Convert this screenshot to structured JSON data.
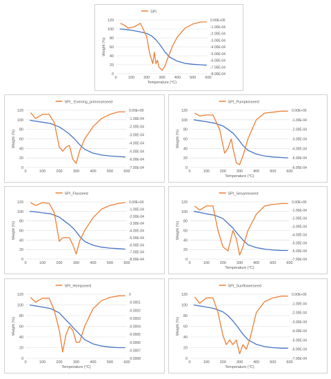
{
  "colors": {
    "weight_line": "#4472c4",
    "deriv_line": "#ed7d31",
    "grid": "#d9d9d9",
    "axis_text": "#595959"
  },
  "chart_data": [
    {
      "type": "line",
      "title": "",
      "legend": "SPI",
      "legend_position": "top",
      "xlabel": "Temperature (°C)",
      "ylabel": "Weight (%)",
      "xlim": [
        0,
        600
      ],
      "ylim": [
        0,
        120
      ],
      "y_ticks": [
        0,
        20,
        40,
        60,
        80,
        100,
        120
      ],
      "x_ticks": [
        0,
        100,
        200,
        300,
        400,
        500,
        600
      ],
      "y2_ticks": [
        "0.00E+00",
        "-1.00E-04",
        "-2.00E-04",
        "-3.00E-04",
        "-4.00E-04",
        "-5.00E-04",
        "-6.00E-04",
        "-7.00E-04",
        "-8.00E-04"
      ],
      "y2lim": [
        -0.0008,
        0
      ],
      "grid": true,
      "weight": {
        "x": [
          25,
          60,
          100,
          150,
          200,
          230,
          260,
          290,
          320,
          350,
          400,
          450,
          500,
          550,
          590
        ],
        "y": [
          100,
          99,
          97,
          94,
          90,
          85,
          76,
          63,
          48,
          37,
          28,
          23,
          21,
          20,
          19
        ]
      },
      "dwdt": {
        "name": "SPI",
        "x": [
          30,
          50,
          80,
          120,
          160,
          200,
          220,
          240,
          250,
          260,
          270,
          280,
          300,
          320,
          340,
          370,
          400,
          450,
          500,
          550,
          590
        ],
        "y": [
          -5e-05,
          -7e-05,
          -0.00012,
          -0.0001,
          -5e-05,
          -0.00025,
          -0.0005,
          -0.00065,
          -0.00048,
          -0.00065,
          -0.0006,
          -0.0007,
          -0.00075,
          -0.00068,
          -0.00055,
          -0.00038,
          -0.00025,
          -0.00012,
          -6e-05,
          -3e-05,
          -3e-05
        ]
      }
    },
    {
      "type": "line",
      "title": "",
      "legend": "SPI_ Evening_primroseseed",
      "legend_position": "top",
      "xlabel": "",
      "ylabel": "Weight (%)",
      "xlim": [
        0,
        600
      ],
      "ylim": [
        0,
        120
      ],
      "y_ticks": [
        0,
        20,
        40,
        60,
        80,
        100,
        120
      ],
      "x_ticks": [
        0,
        100,
        200,
        300,
        400,
        500,
        600
      ],
      "y2_ticks": [
        "0.00E+00",
        "-1.00E-04",
        "-2.00E-04",
        "-3.00E-04",
        "-4.00E-04",
        "-5.00E-04",
        "-6.00E-04",
        "-7.00E-04"
      ],
      "y2lim": [
        -0.0007,
        0
      ],
      "grid": true,
      "weight": {
        "x": [
          25,
          60,
          100,
          150,
          200,
          230,
          260,
          290,
          320,
          350,
          400,
          450,
          500,
          550,
          590
        ],
        "y": [
          99,
          97,
          95,
          92,
          85,
          78,
          70,
          60,
          48,
          38,
          30,
          26,
          24,
          23,
          22
        ]
      },
      "dwdt": {
        "name": "SPI_ Evening_primroseseed",
        "x": [
          30,
          60,
          100,
          140,
          170,
          200,
          220,
          240,
          260,
          280,
          300,
          320,
          350,
          400,
          450,
          500,
          550,
          590
        ],
        "y": [
          -3e-05,
          -0.0001,
          -5e-05,
          -5e-05,
          -0.00015,
          -0.00045,
          -0.0005,
          -0.00045,
          -0.00043,
          -0.0006,
          -0.00065,
          -0.0005,
          -0.00035,
          -0.0002,
          -0.0001,
          -5e-05,
          -2e-05,
          -2e-05
        ]
      }
    },
    {
      "type": "line",
      "title": "",
      "legend": "SPI_Pumpkinseed",
      "legend_position": "top",
      "xlabel": "Temperature (°C)",
      "ylabel": "Weight (%)",
      "xlim": [
        0,
        600
      ],
      "ylim": [
        0,
        120
      ],
      "y_ticks": [
        0,
        20,
        40,
        60,
        80,
        100,
        120
      ],
      "x_ticks": [
        0,
        100,
        200,
        300,
        400,
        500,
        600
      ],
      "y2_ticks": [
        "0.00E+00",
        "-1.00E-04",
        "-2.00E-04",
        "-3.00E-04",
        "-4.00E-04",
        "-5.00E-04",
        "-6.00E-04"
      ],
      "y2lim": [
        -0.0006,
        0
      ],
      "grid": true,
      "weight": {
        "x": [
          25,
          60,
          100,
          150,
          200,
          230,
          260,
          290,
          320,
          350,
          400,
          450,
          500,
          550,
          590
        ],
        "y": [
          100,
          98,
          96,
          93,
          87,
          80,
          72,
          60,
          46,
          36,
          28,
          24,
          22,
          21,
          20
        ]
      },
      "dwdt": {
        "name": "SPI_Pumpkinseed",
        "x": [
          30,
          60,
          100,
          140,
          180,
          210,
          230,
          250,
          260,
          280,
          300,
          320,
          350,
          400,
          450,
          500,
          550,
          590
        ],
        "y": [
          -3e-05,
          -6e-05,
          -5e-05,
          -5e-05,
          -0.0002,
          -0.00045,
          -0.0004,
          -0.0003,
          -0.0004,
          -0.00055,
          -0.00057,
          -0.00048,
          -0.0003,
          -0.0001,
          -3e-05,
          -2e-05,
          -1e-05,
          -1e-05
        ]
      }
    },
    {
      "type": "line",
      "title": "",
      "legend": "SPI_Flaxseed",
      "legend_position": "top",
      "xlabel": "",
      "ylabel": "Weight (%)",
      "xlim": [
        0,
        600
      ],
      "ylim": [
        0,
        120
      ],
      "y_ticks": [
        0,
        20,
        40,
        60,
        80,
        100,
        120
      ],
      "x_ticks": [
        0,
        100,
        200,
        300,
        400,
        500,
        600
      ],
      "y2_ticks": [
        "0.00E+00",
        "-1.00E-04",
        "-2.00E-04",
        "-3.00E-04",
        "-4.00E-04",
        "-5.00E-04",
        "-6.00E-04",
        "-7.00E-04",
        "-8.00E-04"
      ],
      "y2lim": [
        -0.0008,
        0
      ],
      "grid": true,
      "weight": {
        "x": [
          25,
          60,
          100,
          150,
          200,
          230,
          260,
          290,
          320,
          350,
          400,
          450,
          500,
          550,
          590
        ],
        "y": [
          100,
          99,
          97,
          95,
          88,
          80,
          72,
          62,
          48,
          37,
          29,
          25,
          23,
          22,
          21
        ]
      },
      "dwdt": {
        "name": "SPI_Flaxseed",
        "x": [
          30,
          60,
          100,
          140,
          170,
          200,
          220,
          240,
          260,
          280,
          300,
          320,
          350,
          400,
          450,
          500,
          550,
          590
        ],
        "y": [
          -1e-05,
          -5e-05,
          -1e-05,
          -2e-05,
          -0.00015,
          -0.00055,
          -0.0005,
          -0.0005,
          -0.0005,
          -0.0006,
          -0.00073,
          -0.00055,
          -0.0004,
          -0.00022,
          -0.0001,
          -5e-05,
          -2e-05,
          -1e-05
        ]
      }
    },
    {
      "type": "line",
      "title": "",
      "legend": "SPI_Sesameseed",
      "legend_position": "top",
      "xlabel": "Temperature (°C)",
      "ylabel": "Weight (%)",
      "xlim": [
        0,
        600
      ],
      "ylim": [
        0,
        120
      ],
      "y_ticks": [
        0,
        20,
        40,
        60,
        80,
        100,
        120
      ],
      "x_ticks": [
        0,
        100,
        200,
        300,
        400,
        500,
        600
      ],
      "y2_ticks": [
        "0.00E+00",
        "-1.00E-04",
        "-2.00E-04",
        "-3.00E-04",
        "-4.00E-04",
        "-5.00E-04",
        "-6.00E-04",
        "-7.00E-04"
      ],
      "y2lim": [
        -0.0007,
        0
      ],
      "grid": true,
      "weight": {
        "x": [
          25,
          60,
          100,
          150,
          200,
          230,
          260,
          290,
          320,
          350,
          400,
          450,
          500,
          550,
          590
        ],
        "y": [
          100,
          98,
          95,
          92,
          85,
          75,
          65,
          52,
          40,
          30,
          24,
          21,
          19,
          18,
          18
        ]
      },
      "dwdt": {
        "name": "SPI_Sesameseed",
        "x": [
          30,
          60,
          100,
          140,
          170,
          200,
          230,
          260,
          280,
          300,
          320,
          350,
          400,
          450,
          500,
          550,
          590
        ],
        "y": [
          -5e-05,
          -0.0001,
          -5e-05,
          -5e-05,
          -0.00035,
          -0.00055,
          -0.0006,
          -0.00035,
          -0.00045,
          -0.00065,
          -0.00055,
          -0.00035,
          -0.00015,
          -5e-05,
          -3e-05,
          -2e-05,
          -2e-05
        ]
      }
    },
    {
      "type": "line",
      "title": "",
      "legend": "SPI_Hempseed",
      "legend_position": "top",
      "xlabel": "Temperature (°C)",
      "ylabel": "Weight (%)",
      "xlim": [
        0,
        600
      ],
      "ylim": [
        0,
        120
      ],
      "y_ticks": [
        0,
        20,
        40,
        60,
        80,
        100,
        120
      ],
      "x_ticks": [
        0,
        100,
        200,
        300,
        400,
        500,
        600
      ],
      "y2_ticks": [
        "0",
        "-0.0001",
        "-0.0002",
        "-0.0003",
        "-0.0004",
        "-0.0005",
        "-0.0006",
        "-0.0007",
        "-0.0008"
      ],
      "y2lim": [
        -0.0008,
        0
      ],
      "grid": true,
      "weight": {
        "x": [
          25,
          60,
          100,
          150,
          200,
          230,
          260,
          290,
          320,
          350,
          400,
          450,
          500,
          550,
          590
        ],
        "y": [
          100,
          98,
          96,
          93,
          85,
          75,
          65,
          55,
          45,
          35,
          27,
          23,
          21,
          20,
          20
        ]
      },
      "dwdt": {
        "name": "SPI_Hempseed",
        "x": [
          30,
          60,
          100,
          140,
          170,
          200,
          220,
          240,
          260,
          280,
          300,
          320,
          350,
          400,
          450,
          500,
          550,
          590
        ],
        "y": [
          -4e-05,
          -0.0001,
          -5e-05,
          -5e-05,
          -0.0002,
          -0.00045,
          -0.00072,
          -0.0005,
          -0.0004,
          -0.00045,
          -0.0006,
          -0.0006,
          -0.0004,
          -0.00018,
          -8e-05,
          -4e-05,
          -2e-05,
          -2e-05
        ]
      }
    },
    {
      "type": "line",
      "title": "",
      "legend": "SPI_Sunflowerseed",
      "legend_position": "top",
      "xlabel": "Temperature (°C)",
      "ylabel": "Weight (%)",
      "xlim": [
        0,
        600
      ],
      "ylim": [
        0,
        120
      ],
      "y_ticks": [
        0,
        20,
        40,
        60,
        80,
        100,
        120
      ],
      "x_ticks": [
        0,
        100,
        200,
        300,
        400,
        500,
        600
      ],
      "y2_ticks": [
        "0.00E+00",
        "-1.00E-04",
        "-2.00E-04",
        "-3.00E-04",
        "-4.00E-04",
        "-5.00E-04",
        "-6.00E-04",
        "-7.00E-04"
      ],
      "y2lim": [
        -0.0007,
        0
      ],
      "grid": true,
      "weight": {
        "x": [
          25,
          60,
          100,
          150,
          200,
          230,
          260,
          290,
          320,
          350,
          400,
          450,
          500,
          550,
          590
        ],
        "y": [
          100,
          98,
          96,
          93,
          87,
          80,
          70,
          58,
          45,
          35,
          26,
          22,
          20,
          19,
          19
        ]
      },
      "dwdt": {
        "name": "SPI_Sunflowerseed",
        "x": [
          30,
          60,
          100,
          140,
          170,
          200,
          220,
          240,
          260,
          280,
          300,
          320,
          340,
          360,
          400,
          450,
          500,
          550,
          590
        ],
        "y": [
          -3e-05,
          -0.0001,
          -4e-05,
          -4e-05,
          -0.0002,
          -0.00045,
          -0.00055,
          -0.0005,
          -0.00055,
          -0.0005,
          -0.00065,
          -0.00055,
          -0.0006,
          -0.0005,
          -0.0002,
          -8e-05,
          -4e-05,
          -2e-05,
          -2e-05
        ]
      }
    }
  ]
}
